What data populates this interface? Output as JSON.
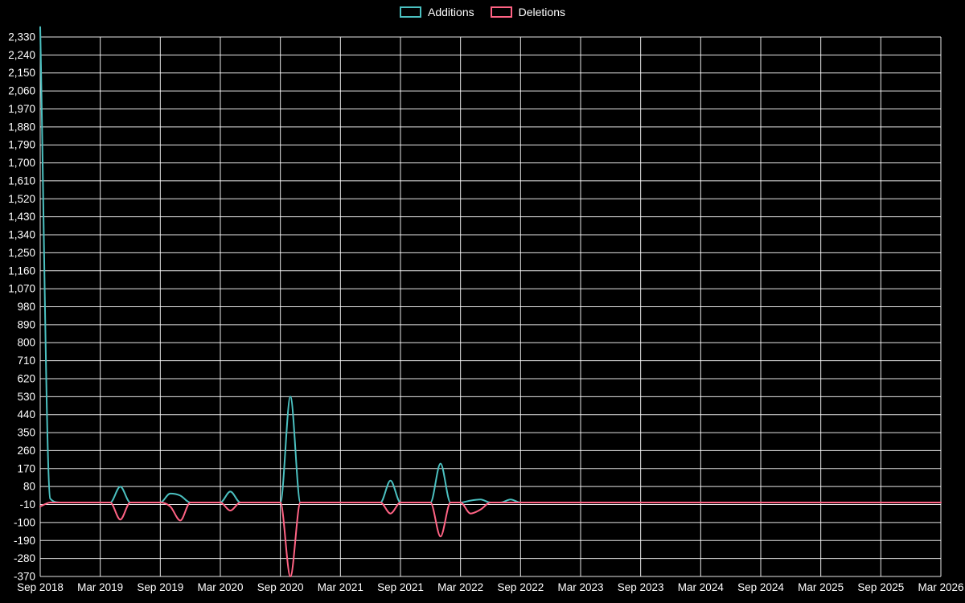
{
  "chart_data": {
    "type": "line",
    "title": "",
    "legend_position": "top",
    "background_color": "#000000",
    "grid_color": "rgba(255,255,255,0.9)",
    "text_color": "#ffffff",
    "x_tick_labels": [
      "Sep 2018",
      "Mar 2019",
      "Sep 2019",
      "Mar 2020",
      "Sep 2020",
      "Mar 2021",
      "Sep 2021",
      "Mar 2022",
      "Sep 2022",
      "Mar 2023",
      "Sep 2023",
      "Mar 2024",
      "Sep 2024",
      "Mar 2025",
      "Sep 2025",
      "Mar 2026"
    ],
    "x_tick_every": 6,
    "n_points": 91,
    "ylim": [
      -370,
      2330
    ],
    "y_step": 90,
    "grid": true,
    "series": [
      {
        "name": "Additions",
        "color": "#4bc0c0",
        "values": [
          2380,
          20,
          0,
          0,
          0,
          0,
          0,
          0,
          80,
          0,
          0,
          0,
          0,
          45,
          35,
          0,
          0,
          0,
          0,
          55,
          0,
          0,
          0,
          0,
          0,
          530,
          0,
          0,
          0,
          0,
          0,
          0,
          0,
          0,
          0,
          110,
          0,
          0,
          0,
          0,
          195,
          0,
          0,
          10,
          15,
          0,
          0,
          15,
          0,
          0,
          0,
          0,
          0,
          0,
          0,
          0,
          0,
          0,
          0,
          0,
          0,
          0,
          0,
          0,
          0,
          0,
          0,
          0,
          0,
          0,
          0,
          0,
          0,
          0,
          0,
          0,
          0,
          0,
          0,
          0,
          0,
          0,
          0,
          0,
          0,
          0,
          0,
          0,
          0,
          0,
          0
        ]
      },
      {
        "name": "Deletions",
        "color": "#ff6384",
        "values": [
          -20,
          0,
          0,
          0,
          0,
          0,
          0,
          0,
          -85,
          0,
          0,
          0,
          0,
          -20,
          -90,
          0,
          0,
          0,
          0,
          -40,
          0,
          0,
          0,
          0,
          0,
          -370,
          0,
          0,
          0,
          0,
          0,
          0,
          0,
          0,
          0,
          -55,
          0,
          0,
          0,
          0,
          -170,
          0,
          0,
          -55,
          -35,
          0,
          0,
          0,
          0,
          0,
          0,
          0,
          0,
          0,
          0,
          0,
          0,
          0,
          0,
          0,
          0,
          0,
          0,
          0,
          0,
          0,
          0,
          0,
          0,
          0,
          0,
          0,
          0,
          0,
          0,
          0,
          0,
          0,
          0,
          0,
          0,
          0,
          0,
          0,
          0,
          0,
          0,
          0,
          0,
          0,
          0
        ]
      }
    ]
  }
}
